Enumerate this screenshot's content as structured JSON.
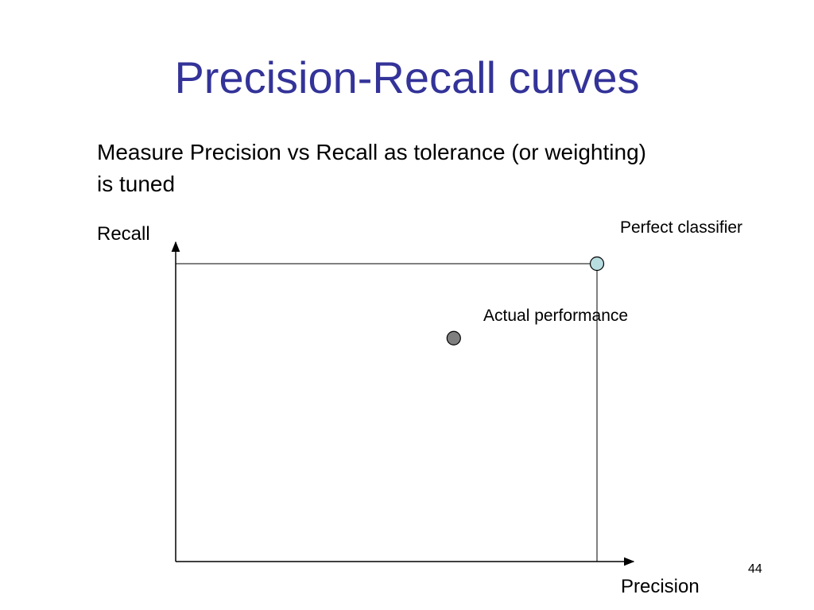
{
  "slide": {
    "title": "Precision-Recall curves",
    "body_text": "Measure Precision vs Recall as tolerance (or weighting) is tuned",
    "slide_number": "44",
    "title_color": "#333399"
  },
  "diagram": {
    "y_axis_label": "Recall",
    "x_axis_label": "Precision",
    "annotations": {
      "perfect": "Perfect classifier",
      "actual": "Actual performance"
    },
    "points": [
      {
        "name": "Perfect classifier",
        "precision": 1.0,
        "recall": 1.0,
        "color": "#b7dde0"
      },
      {
        "name": "Actual performance",
        "precision": 0.66,
        "recall": 0.75,
        "color": "#7f7f7f"
      }
    ]
  }
}
